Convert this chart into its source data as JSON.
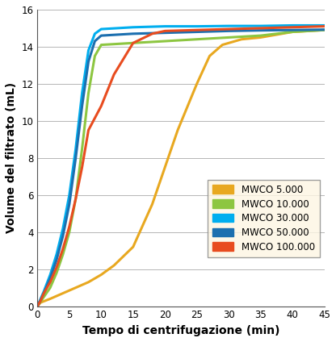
{
  "title": "",
  "xlabel": "Tempo di centrifugazione (min)",
  "ylabel": "Volume del filtrato (mL)",
  "xlim": [
    0,
    45
  ],
  "ylim": [
    0,
    16
  ],
  "xticks": [
    0,
    5,
    10,
    15,
    20,
    25,
    30,
    35,
    40,
    45
  ],
  "yticks": [
    0,
    2,
    4,
    6,
    8,
    10,
    12,
    14,
    16
  ],
  "background_color": "#ffffff",
  "legend_bg": "#fdf6e3",
  "series": [
    {
      "label": "MWCO 5.000",
      "color": "#e8a820",
      "linewidth": 2.2,
      "x": [
        0,
        0.5,
        2,
        4,
        6,
        8,
        10,
        12,
        15,
        18,
        20,
        22,
        25,
        27,
        29,
        32,
        35,
        40,
        45
      ],
      "y": [
        0,
        0.2,
        0.4,
        0.7,
        1.0,
        1.3,
        1.7,
        2.2,
        3.2,
        5.5,
        7.5,
        9.5,
        12.0,
        13.5,
        14.1,
        14.4,
        14.5,
        14.8,
        14.9
      ]
    },
    {
      "label": "MWCO 10.000",
      "color": "#8dc641",
      "linewidth": 2.2,
      "x": [
        0,
        0.5,
        1,
        2,
        3,
        4,
        5,
        6,
        7,
        8,
        9,
        10,
        15,
        20,
        25,
        30,
        35,
        40,
        45
      ],
      "y": [
        0,
        0.25,
        0.5,
        1.0,
        1.8,
        2.8,
        4.0,
        5.8,
        8.5,
        11.5,
        13.5,
        14.1,
        14.2,
        14.3,
        14.4,
        14.5,
        14.6,
        14.8,
        14.9
      ]
    },
    {
      "label": "MWCO 30.000",
      "color": "#00aeef",
      "linewidth": 2.2,
      "x": [
        0,
        0.5,
        1,
        2,
        3,
        4,
        5,
        6,
        7,
        8,
        9,
        10,
        15,
        20,
        25,
        30,
        35,
        40,
        45
      ],
      "y": [
        0,
        0.4,
        0.8,
        1.7,
        2.8,
        4.2,
        6.0,
        8.5,
        11.5,
        13.8,
        14.7,
        14.95,
        15.05,
        15.1,
        15.1,
        15.12,
        15.12,
        15.15,
        15.15
      ]
    },
    {
      "label": "MWCO 50.000",
      "color": "#1c6faf",
      "linewidth": 2.2,
      "x": [
        0,
        0.5,
        1,
        2,
        3,
        4,
        5,
        6,
        7,
        8,
        9,
        10,
        15,
        20,
        25,
        30,
        35,
        40,
        45
      ],
      "y": [
        0,
        0.35,
        0.7,
        1.5,
        2.5,
        3.8,
        5.5,
        8.0,
        10.8,
        13.2,
        14.3,
        14.6,
        14.7,
        14.75,
        14.8,
        14.85,
        14.88,
        14.9,
        14.92
      ]
    },
    {
      "label": "MWCO 100.000",
      "color": "#e84c1f",
      "linewidth": 2.2,
      "x": [
        0,
        0.5,
        1,
        2,
        3,
        4,
        5,
        6,
        7,
        8,
        10,
        12,
        15,
        18,
        20,
        25,
        30,
        35,
        40,
        45
      ],
      "y": [
        0,
        0.3,
        0.7,
        1.3,
        2.1,
        3.1,
        4.3,
        5.8,
        7.5,
        9.5,
        10.8,
        12.5,
        14.2,
        14.7,
        14.85,
        14.9,
        14.95,
        15.0,
        15.05,
        15.1
      ]
    }
  ]
}
